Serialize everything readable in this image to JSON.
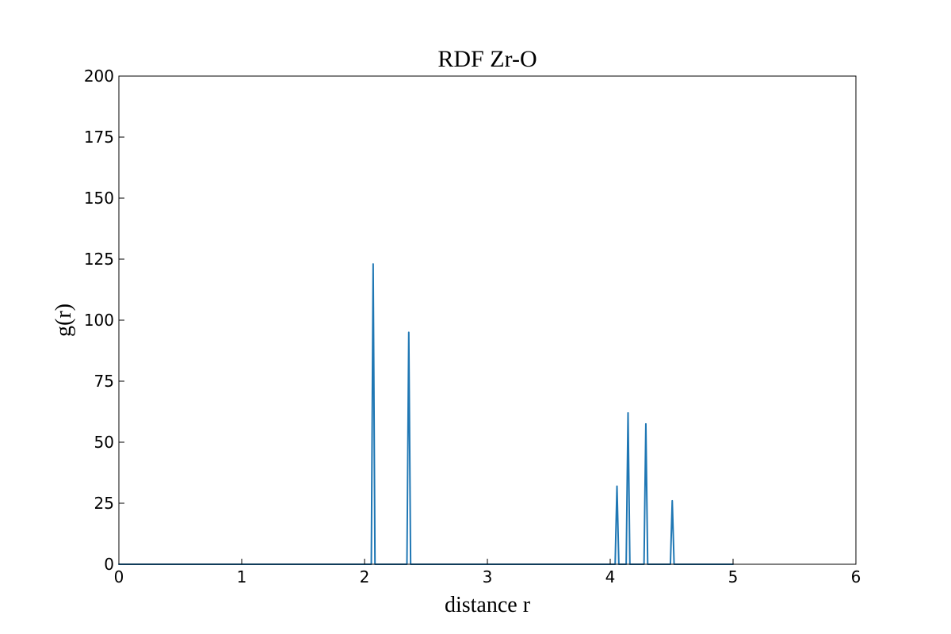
{
  "chart_data": {
    "type": "line",
    "title": "RDF Zr-O",
    "xlabel": "distance r",
    "ylabel": "g(r)",
    "xlim": [
      0,
      6
    ],
    "ylim": [
      0,
      200
    ],
    "xticks": [
      0,
      1,
      2,
      3,
      4,
      5,
      6
    ],
    "yticks": [
      0,
      25,
      50,
      75,
      100,
      125,
      150,
      175,
      200
    ],
    "grid": false,
    "legend": "none",
    "line_color": "#1f77b4",
    "series": [
      {
        "x": [
          0,
          2.055,
          2.07,
          2.085,
          2.345,
          2.36,
          2.375,
          4.04,
          4.055,
          4.07,
          4.13,
          4.145,
          4.16,
          4.275,
          4.29,
          4.305,
          4.49,
          4.505,
          4.52,
          5.0
        ],
        "values": [
          0,
          0,
          123,
          0,
          0,
          95,
          0,
          0,
          32,
          0,
          0,
          62,
          0,
          0,
          57.5,
          0,
          0,
          26,
          0,
          0
        ]
      }
    ]
  }
}
